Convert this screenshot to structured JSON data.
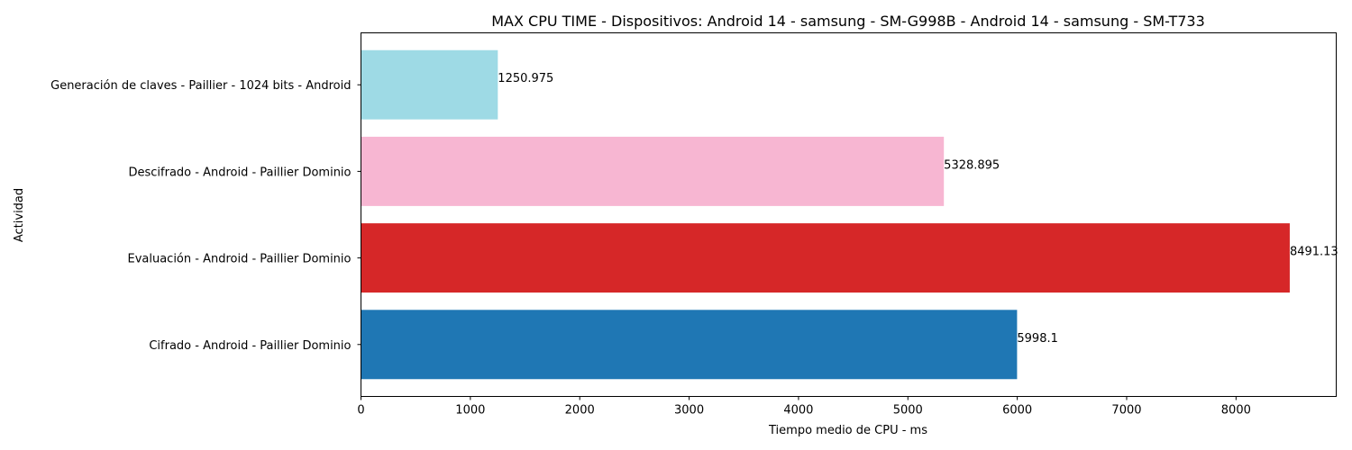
{
  "chart_data": {
    "type": "bar",
    "orientation": "horizontal",
    "title": "MAX CPU TIME - Dispositivos: Android 14 - samsung - SM-G998B - Android 14 - samsung - SM-T733",
    "xlabel": "Tiempo medio de CPU - ms",
    "ylabel": "Actividad",
    "categories": [
      "Cifrado - Android - Paillier Dominio",
      "Evaluación - Android - Paillier Dominio",
      "Descifrado - Android - Paillier Dominio",
      "Generación de claves - Paillier - 1024 bits - Android"
    ],
    "values": [
      5998.1,
      8491.13,
      5328.895,
      1250.975
    ],
    "value_labels": [
      "5998.1",
      "8491.13",
      "5328.895",
      "1250.975"
    ],
    "colors": [
      "#1f77b4",
      "#d62728",
      "#f7b6d2",
      "#9edae5"
    ],
    "xlim": [
      0,
      8916
    ],
    "xticks": [
      0,
      1000,
      2000,
      3000,
      4000,
      5000,
      6000,
      7000,
      8000
    ],
    "grid": false,
    "legend": "none"
  }
}
